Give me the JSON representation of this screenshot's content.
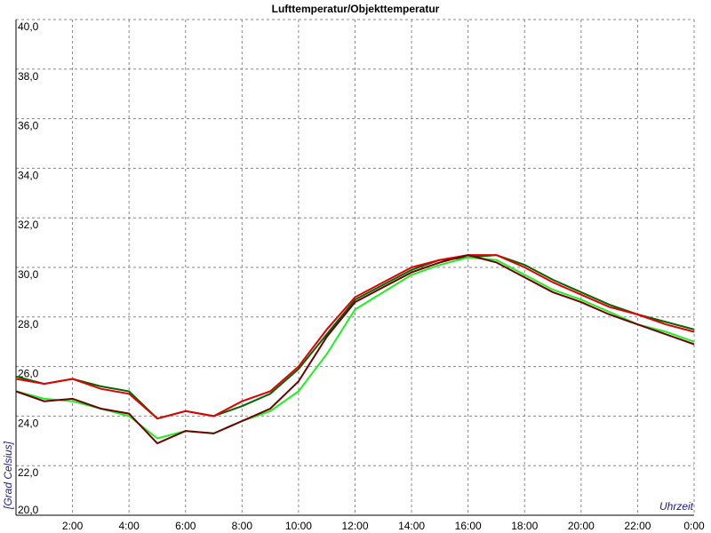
{
  "chart_data": {
    "type": "line",
    "title": "Lufttemperatur/Objekttemperatur",
    "y_label": "[Grad Celsius]",
    "x_label": "Uhrzeit",
    "x": [
      0,
      1,
      2,
      3,
      4,
      5,
      6,
      7,
      8,
      9,
      10,
      11,
      12,
      13,
      14,
      15,
      16,
      17,
      18,
      19,
      20,
      21,
      22,
      23,
      24
    ],
    "series": [
      {
        "color": "#006400",
        "values": [
          25.6,
          25.3,
          25.5,
          25.2,
          25.0,
          23.9,
          24.2,
          24.0,
          24.4,
          24.9,
          25.9,
          27.3,
          28.7,
          29.3,
          29.9,
          30.3,
          30.4,
          30.5,
          30.1,
          29.5,
          29.0,
          28.5,
          28.1,
          27.8,
          27.5
        ]
      },
      {
        "color": "#e00000",
        "values": [
          25.5,
          25.3,
          25.5,
          25.1,
          24.9,
          23.9,
          24.2,
          24.0,
          24.6,
          25.0,
          26.0,
          27.5,
          28.8,
          29.4,
          30.0,
          30.3,
          30.5,
          30.5,
          30.0,
          29.4,
          28.9,
          28.4,
          28.1,
          27.7,
          27.4
        ]
      },
      {
        "color": "#22ee22",
        "values": [
          25.0,
          24.7,
          24.6,
          24.3,
          24.0,
          23.1,
          23.4,
          23.3,
          23.8,
          24.2,
          25.0,
          26.5,
          28.3,
          29.0,
          29.7,
          30.1,
          30.4,
          30.3,
          29.7,
          29.1,
          28.7,
          28.2,
          27.7,
          27.4,
          27.0
        ]
      },
      {
        "color": "#6b0000",
        "values": [
          25.0,
          24.6,
          24.7,
          24.3,
          24.1,
          22.9,
          23.4,
          23.3,
          23.8,
          24.3,
          25.4,
          27.2,
          28.6,
          29.2,
          29.8,
          30.2,
          30.5,
          30.2,
          29.6,
          29.0,
          28.6,
          28.1,
          27.7,
          27.3,
          26.9
        ]
      }
    ],
    "xlim": [
      0,
      24
    ],
    "xticks": [
      {
        "value": 2,
        "label": "2:00"
      },
      {
        "value": 4,
        "label": "4:00"
      },
      {
        "value": 6,
        "label": "6:00"
      },
      {
        "value": 8,
        "label": "8:00"
      },
      {
        "value": 10,
        "label": "10:00"
      },
      {
        "value": 12,
        "label": "12:00"
      },
      {
        "value": 14,
        "label": "14:00"
      },
      {
        "value": 16,
        "label": "16:00"
      },
      {
        "value": 18,
        "label": "18:00"
      },
      {
        "value": 20,
        "label": "20:00"
      },
      {
        "value": 22,
        "label": "22:00"
      },
      {
        "value": 24,
        "label": "0:00"
      }
    ],
    "ylim": [
      20,
      40
    ],
    "yticks": [
      {
        "value": 20,
        "label": "20,0"
      },
      {
        "value": 22,
        "label": "22,0"
      },
      {
        "value": 24,
        "label": "24,0"
      },
      {
        "value": 26,
        "label": "26,0"
      },
      {
        "value": 28,
        "label": "28,0"
      },
      {
        "value": 30,
        "label": "30,0"
      },
      {
        "value": 32,
        "label": "32,0"
      },
      {
        "value": 34,
        "label": "34,0"
      },
      {
        "value": 36,
        "label": "36,0"
      },
      {
        "value": 38,
        "label": "38,0"
      },
      {
        "value": 40,
        "label": "40,0"
      }
    ],
    "grid": true
  }
}
